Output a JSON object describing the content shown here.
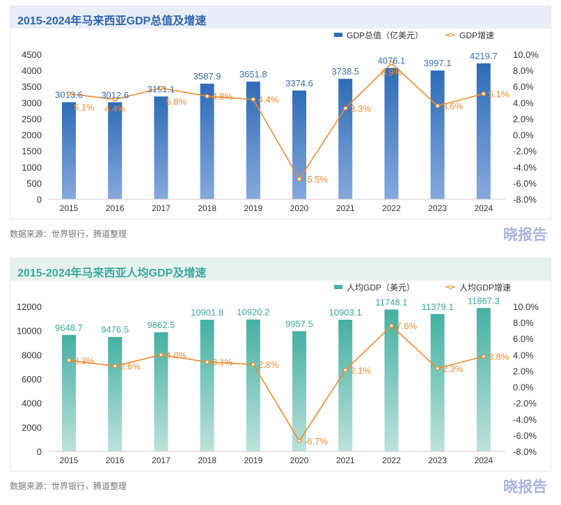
{
  "source": "数据来源：世界银行，腾道整理",
  "watermark": "晓报告",
  "chart_data": [
    {
      "type": "bar+line",
      "title": "2015-2024年马来西亚GDP总值及增速",
      "categories": [
        "2015",
        "2016",
        "2017",
        "2018",
        "2019",
        "2020",
        "2021",
        "2022",
        "2023",
        "2024"
      ],
      "series": [
        {
          "name": "GDP总值（亿美元）",
          "type": "bar",
          "axis": "left",
          "values": [
            3013.6,
            3012.6,
            3191.1,
            3587.9,
            3651.8,
            3374.6,
            3738.5,
            4076.1,
            3997.1,
            4219.7
          ]
        },
        {
          "name": "GDP增速",
          "type": "line",
          "axis": "right",
          "unit": "%",
          "values": [
            5.1,
            4.4,
            5.8,
            4.8,
            4.4,
            -5.5,
            3.3,
            8.9,
            3.6,
            5.1
          ]
        }
      ],
      "yleft": {
        "range": [
          0,
          4500
        ],
        "ticks": [
          0,
          500,
          1000,
          1500,
          2000,
          2500,
          3000,
          3500,
          4000,
          4500
        ]
      },
      "yright": {
        "range": [
          -8,
          10
        ],
        "ticks": [
          -8,
          -6,
          -4,
          -2,
          0,
          2,
          4,
          6,
          8,
          10
        ],
        "format": "%.1f%"
      },
      "colors": {
        "bar_top": "#2e6cb6",
        "bar_bottom": "#86a9dd",
        "line": "#f08a2c",
        "bar_label": "#3a6db0",
        "title": "#2f64ad",
        "title_bg": "#e9edf7"
      },
      "legend": "top-right"
    },
    {
      "type": "bar+line",
      "title": "2015-2024年马来西亚人均GDP及增速",
      "categories": [
        "2015",
        "2016",
        "2017",
        "2018",
        "2019",
        "2020",
        "2021",
        "2022",
        "2023",
        "2024"
      ],
      "series": [
        {
          "name": "人均GDP（美元）",
          "type": "bar",
          "axis": "left",
          "values": [
            9648.7,
            9476.5,
            9862.5,
            10901.8,
            10920.2,
            9957.5,
            10903.1,
            11748.1,
            11379.1,
            11867.3
          ]
        },
        {
          "name": "人均GDP增速",
          "type": "line",
          "axis": "right",
          "unit": "%",
          "values": [
            3.3,
            2.6,
            4.0,
            3.1,
            2.8,
            -6.7,
            2.1,
            7.6,
            2.3,
            3.8
          ]
        }
      ],
      "yleft": {
        "range": [
          0,
          12000
        ],
        "ticks": [
          0,
          2000,
          4000,
          6000,
          8000,
          10000,
          12000
        ]
      },
      "yright": {
        "range": [
          -8,
          10
        ],
        "ticks": [
          -8,
          -6,
          -4,
          -2,
          0,
          2,
          4,
          6,
          8,
          10
        ],
        "format": "%.1f%"
      },
      "colors": {
        "bar_top": "#45b0a2",
        "bar_bottom": "#bde2dc",
        "line": "#f08a2c",
        "bar_label": "#3aa99a",
        "title": "#3aa99a",
        "title_bg": "#e7f2ef"
      },
      "legend": "top-right"
    }
  ]
}
